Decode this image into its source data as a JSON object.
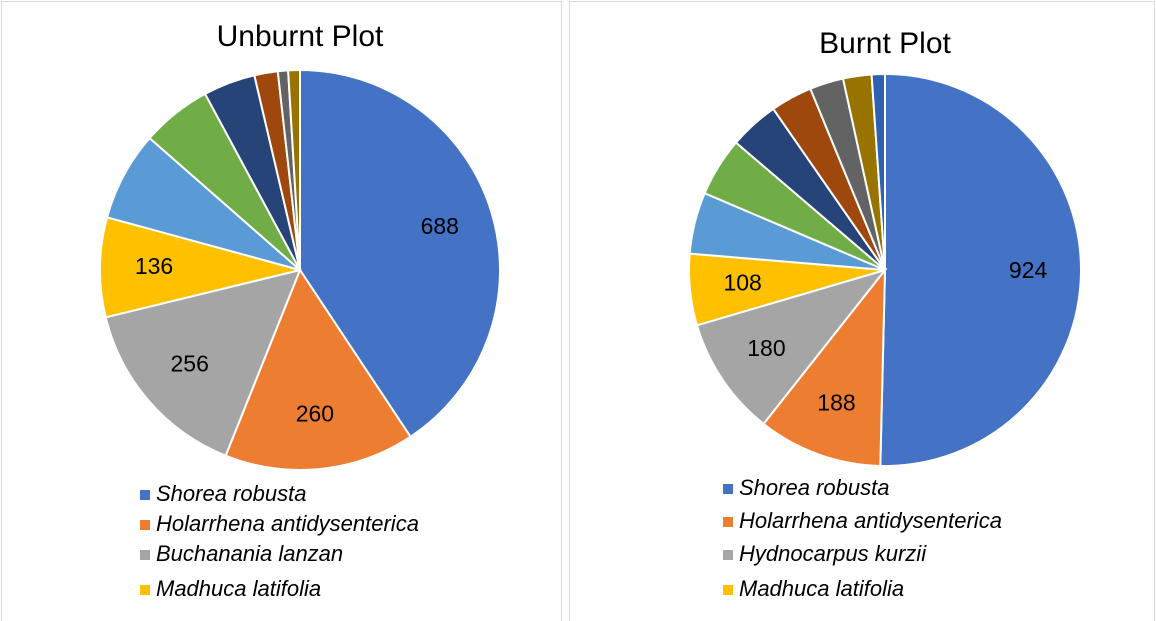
{
  "chart_data": [
    {
      "type": "pie",
      "title": "Unburnt Plot",
      "categories": [
        "Shorea robusta",
        "Holarrhena antidysenterica",
        "Buchanania lanzan",
        "Madhuca latifolia",
        null,
        null,
        null,
        null,
        null,
        null
      ],
      "values": [
        688,
        260,
        256,
        136,
        122,
        96,
        71,
        32,
        14,
        16
      ],
      "colors": [
        "#4472c4",
        "#ed7d31",
        "#a5a5a5",
        "#ffc000",
        "#5b9bd5",
        "#70ad47",
        "#264478",
        "#9e480e",
        "#636363",
        "#997300"
      ]
    },
    {
      "type": "pie",
      "title": "Burnt Plot",
      "categories": [
        "Shorea robusta",
        "Holarrhena antidysenterica",
        "Hydnocarpus kurzii",
        "Madhuca latifolia",
        null,
        null,
        null,
        null,
        null,
        null,
        null
      ],
      "values": [
        924,
        188,
        180,
        108,
        93,
        89,
        75,
        63,
        51,
        43,
        20
      ],
      "colors": [
        "#4472c4",
        "#ed7d31",
        "#a5a5a5",
        "#ffc000",
        "#5b9bd5",
        "#70ad47",
        "#264478",
        "#9e480e",
        "#636363",
        "#997300",
        "#2e62b0"
      ]
    }
  ]
}
